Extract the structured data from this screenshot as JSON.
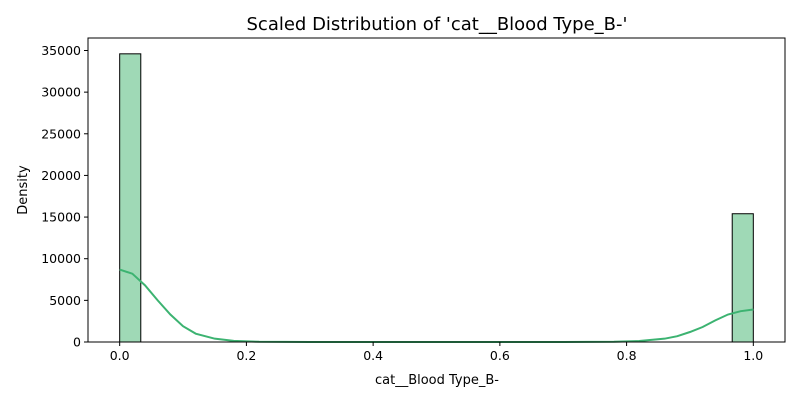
{
  "chart_data": {
    "type": "bar",
    "title": "Scaled Distribution of 'cat__Blood Type_B-'",
    "xlabel": "cat__Blood Type_B-",
    "ylabel": "Density",
    "xlim": [
      -0.05,
      1.05
    ],
    "ylim": [
      0,
      36500
    ],
    "x_ticks": [
      0.0,
      0.2,
      0.4,
      0.6,
      0.8,
      1.0
    ],
    "x_tick_labels": [
      "0.0",
      "0.2",
      "0.4",
      "0.6",
      "0.8",
      "1.0"
    ],
    "y_ticks": [
      0,
      5000,
      10000,
      15000,
      20000,
      25000,
      30000,
      35000
    ],
    "y_tick_labels": [
      "0",
      "5000",
      "10000",
      "15000",
      "20000",
      "25000",
      "30000",
      "35000"
    ],
    "bins": [
      {
        "x0": 0.0,
        "x1": 0.0333,
        "value": 34600
      },
      {
        "x0": 0.9667,
        "x1": 1.0,
        "value": 15400
      }
    ],
    "kde": {
      "x": [
        0.0,
        0.02,
        0.04,
        0.06,
        0.08,
        0.1,
        0.12,
        0.15,
        0.18,
        0.22,
        0.3,
        0.5,
        0.7,
        0.78,
        0.82,
        0.86,
        0.88,
        0.9,
        0.92,
        0.94,
        0.96,
        0.98,
        1.0
      ],
      "y": [
        8700,
        8200,
        6800,
        5000,
        3300,
        1900,
        1000,
        400,
        130,
        30,
        0,
        0,
        0,
        30,
        120,
        400,
        700,
        1200,
        1800,
        2600,
        3300,
        3700,
        3900
      ]
    },
    "grid": false,
    "legend": "none",
    "colors": {
      "bar_fill": "#9fd9b6",
      "bar_edge": "#000000",
      "kde_line": "#3cb371"
    }
  }
}
